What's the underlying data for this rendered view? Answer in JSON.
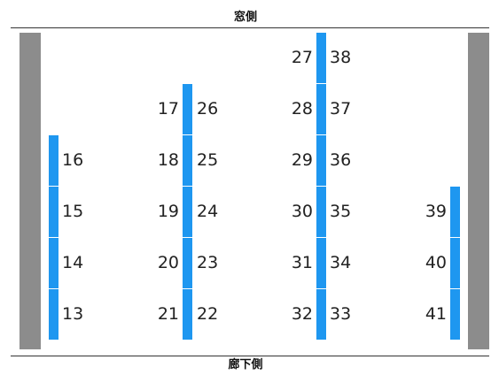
{
  "header": {
    "window_side_label": "窓側"
  },
  "footer": {
    "hallway_side_label": "廊下側"
  },
  "colors": {
    "seat": "#1e97f0",
    "wall": "#8c8c8c",
    "text": "#222222"
  },
  "seat_columns": [
    {
      "id": "col-a",
      "label_side": "right",
      "seats": [
        "16",
        "15",
        "14",
        "13"
      ]
    },
    {
      "id": "col-b-left",
      "label_side": "left",
      "seats": [
        "17",
        "18",
        "19",
        "20",
        "21"
      ]
    },
    {
      "id": "col-b-right",
      "label_side": "right",
      "seats": [
        "26",
        "25",
        "24",
        "23",
        "22"
      ]
    },
    {
      "id": "col-c-left",
      "label_side": "left",
      "seats": [
        "27",
        "28",
        "29",
        "30",
        "31",
        "32"
      ]
    },
    {
      "id": "col-c-right",
      "label_side": "right",
      "seats": [
        "38",
        "37",
        "36",
        "35",
        "34",
        "33"
      ]
    },
    {
      "id": "col-d",
      "label_side": "left",
      "seats": [
        "39",
        "40",
        "41"
      ]
    }
  ]
}
